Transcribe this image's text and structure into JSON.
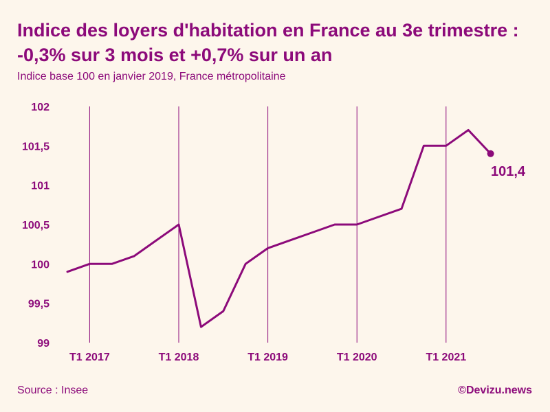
{
  "header": {
    "title": "Indice des loyers d'habitation en France au 3e trimestre : -0,3% sur 3 mois et +0,7% sur un an",
    "subtitle": "Indice base 100 en janvier 2019, France métropolitaine"
  },
  "footer": {
    "source": "Source : Insee",
    "credit": "©Devizu.news"
  },
  "colors": {
    "accent": "#8c0a7a",
    "background": "#fdf6ec"
  },
  "chart_data": {
    "type": "line",
    "title": "Indice des loyers d'habitation en France au 3e trimestre : -0,3% sur 3 mois et +0,7% sur un an",
    "subtitle": "Indice base 100 en janvier 2019, France métropolitaine",
    "x": [
      "T4 2016",
      "T1 2017",
      "T2 2017",
      "T3 2017",
      "T4 2017",
      "T1 2018",
      "T2 2018",
      "T3 2018",
      "T4 2018",
      "T1 2019",
      "T2 2019",
      "T3 2019",
      "T4 2019",
      "T1 2020",
      "T2 2020",
      "T3 2020",
      "T4 2020",
      "T1 2021",
      "T2 2021",
      "T3 2021"
    ],
    "series": [
      {
        "values": [
          99.9,
          100.0,
          100.0,
          100.1,
          100.3,
          100.5,
          99.2,
          99.4,
          100.0,
          100.2,
          100.3,
          100.4,
          100.5,
          100.5,
          100.6,
          100.7,
          101.5,
          101.5,
          101.7,
          101.4
        ]
      }
    ],
    "yticks": [
      "99",
      "99,5",
      "100",
      "100,5",
      "101",
      "101,5",
      "102"
    ],
    "ytick_values": [
      99,
      99.5,
      100,
      100.5,
      101,
      101.5,
      102
    ],
    "ylim": [
      99,
      102
    ],
    "xtick_labels": [
      "T1 2017",
      "T1 2018",
      "T1 2019",
      "T1 2020",
      "T1 2021"
    ],
    "xtick_indices": [
      1,
      5,
      9,
      13,
      17
    ],
    "end_label": "101,4",
    "grid": "vertical lines at T1 of each year",
    "legend": "none"
  }
}
